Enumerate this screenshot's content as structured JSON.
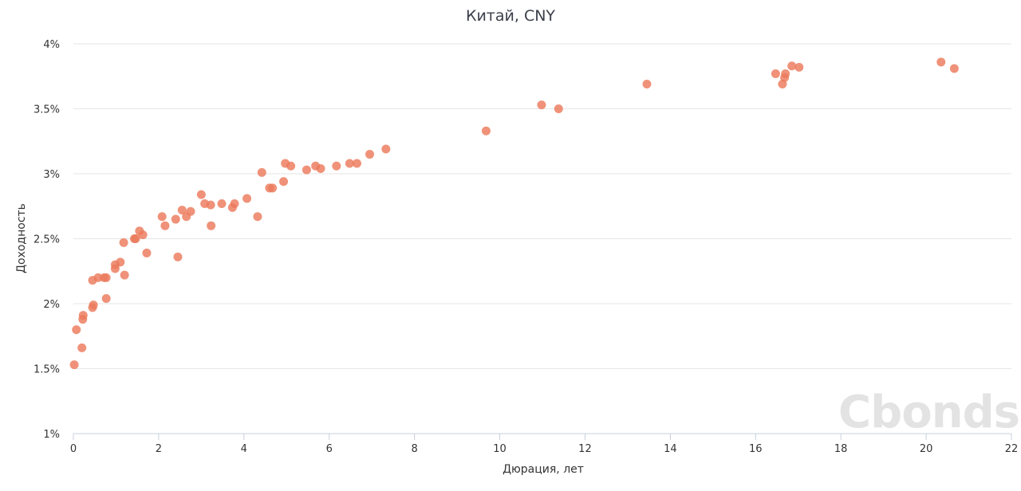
{
  "chart_data": {
    "type": "scatter",
    "title": "Китай, CNY",
    "xlabel": "Дюрация, лет",
    "ylabel": "Доходность",
    "xlim": [
      0,
      22
    ],
    "ylim": [
      1,
      4
    ],
    "x_ticks": [
      0,
      2,
      4,
      6,
      8,
      10,
      12,
      14,
      16,
      18,
      20,
      22
    ],
    "y_ticks": [
      1,
      1.5,
      2,
      2.5,
      3,
      3.5,
      4
    ],
    "y_tick_labels": [
      "1%",
      "1.5%",
      "2%",
      "2.5%",
      "3%",
      "3.5%",
      "4%"
    ],
    "grid": "horizontal",
    "point_color": "#ec7a5c",
    "watermark": "Cbonds",
    "points": [
      [
        0.02,
        1.53
      ],
      [
        0.07,
        1.8
      ],
      [
        0.2,
        1.66
      ],
      [
        0.22,
        1.88
      ],
      [
        0.23,
        1.91
      ],
      [
        0.45,
        1.97
      ],
      [
        0.47,
        1.99
      ],
      [
        0.45,
        2.18
      ],
      [
        0.58,
        2.2
      ],
      [
        0.72,
        2.2
      ],
      [
        0.77,
        2.2
      ],
      [
        0.77,
        2.04
      ],
      [
        0.98,
        2.3
      ],
      [
        0.98,
        2.27
      ],
      [
        1.1,
        2.32
      ],
      [
        1.2,
        2.22
      ],
      [
        1.18,
        2.47
      ],
      [
        1.43,
        2.5
      ],
      [
        1.46,
        2.5
      ],
      [
        1.55,
        2.56
      ],
      [
        1.63,
        2.53
      ],
      [
        1.72,
        2.39
      ],
      [
        2.08,
        2.67
      ],
      [
        2.15,
        2.6
      ],
      [
        2.4,
        2.65
      ],
      [
        2.45,
        2.36
      ],
      [
        2.55,
        2.72
      ],
      [
        2.65,
        2.67
      ],
      [
        2.75,
        2.71
      ],
      [
        3.0,
        2.84
      ],
      [
        3.08,
        2.77
      ],
      [
        3.22,
        2.76
      ],
      [
        3.23,
        2.6
      ],
      [
        3.48,
        2.77
      ],
      [
        3.73,
        2.74
      ],
      [
        3.78,
        2.77
      ],
      [
        4.07,
        2.81
      ],
      [
        4.32,
        2.67
      ],
      [
        4.42,
        3.01
      ],
      [
        4.6,
        2.89
      ],
      [
        4.67,
        2.89
      ],
      [
        4.93,
        2.94
      ],
      [
        4.97,
        3.08
      ],
      [
        5.1,
        3.06
      ],
      [
        5.47,
        3.03
      ],
      [
        5.68,
        3.06
      ],
      [
        5.8,
        3.04
      ],
      [
        6.17,
        3.06
      ],
      [
        6.48,
        3.08
      ],
      [
        6.65,
        3.08
      ],
      [
        6.95,
        3.15
      ],
      [
        7.33,
        3.19
      ],
      [
        9.68,
        3.33
      ],
      [
        10.98,
        3.53
      ],
      [
        11.38,
        3.5
      ],
      [
        13.45,
        3.69
      ],
      [
        16.47,
        3.77
      ],
      [
        16.63,
        3.69
      ],
      [
        16.68,
        3.74
      ],
      [
        16.7,
        3.77
      ],
      [
        16.85,
        3.83
      ],
      [
        17.02,
        3.82
      ],
      [
        20.35,
        3.86
      ],
      [
        20.66,
        3.81
      ]
    ]
  }
}
